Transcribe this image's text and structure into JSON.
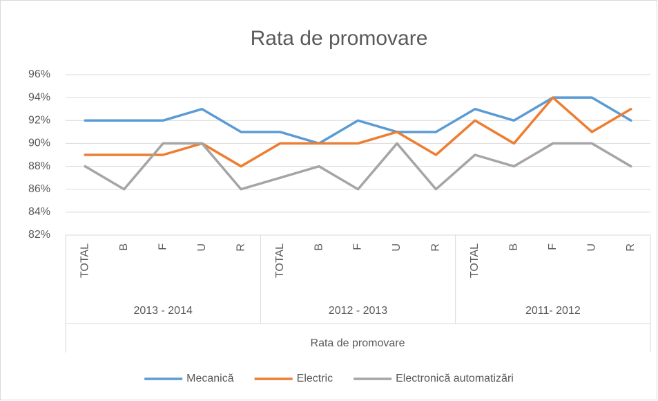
{
  "chart_data": {
    "type": "line",
    "title": "Rata de promovare",
    "x_label": "Rata de promovare",
    "categories": [
      "TOTAL",
      "B",
      "F",
      "U",
      "R",
      "TOTAL",
      "B",
      "F",
      "U",
      "R",
      "TOTAL",
      "B",
      "F",
      "U",
      "R"
    ],
    "category_groups": [
      "2013 - 2014",
      "2012 - 2013",
      "2011- 2012"
    ],
    "series": [
      {
        "name": "Mecanică",
        "color": "#5b9bd5",
        "values": [
          92,
          92,
          92,
          93,
          91,
          91,
          90,
          92,
          91,
          91,
          93,
          92,
          94,
          94,
          92
        ]
      },
      {
        "name": "Electric",
        "color": "#ed7d31",
        "values": [
          89,
          89,
          89,
          90,
          88,
          90,
          90,
          90,
          91,
          89,
          92,
          90,
          94,
          91,
          93
        ]
      },
      {
        "name": "Electronică automatizări",
        "color": "#a5a5a5",
        "values": [
          88,
          86,
          90,
          90,
          86,
          87,
          88,
          86,
          90,
          86,
          89,
          88,
          90,
          90,
          88
        ]
      }
    ],
    "ylim": [
      82,
      96
    ],
    "yticks": [
      {
        "value": 82,
        "label": "82%"
      },
      {
        "value": 84,
        "label": "84%"
      },
      {
        "value": 86,
        "label": "86%"
      },
      {
        "value": 88,
        "label": "88%"
      },
      {
        "value": 90,
        "label": "90%"
      },
      {
        "value": 92,
        "label": "92%"
      },
      {
        "value": 94,
        "label": "94%"
      },
      {
        "value": 96,
        "label": "96%"
      }
    ],
    "grid": true,
    "legend": "bottom"
  }
}
